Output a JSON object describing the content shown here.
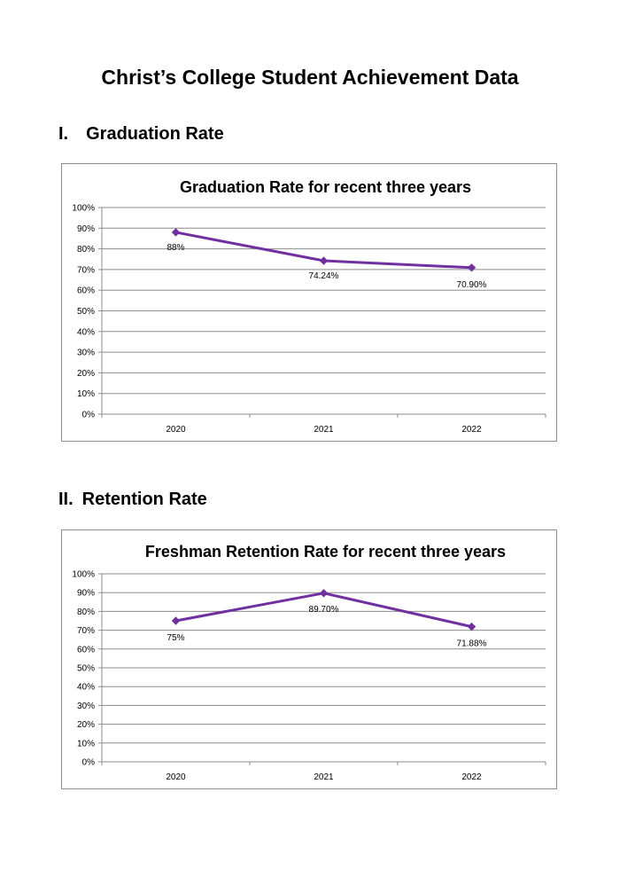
{
  "page": {
    "title": "Christ’s College Student Achievement Data"
  },
  "sections": [
    {
      "heading": "I. Graduation Rate"
    },
    {
      "heading": "II. Retention Rate"
    }
  ],
  "colors": {
    "series_line": "#7030a0",
    "grid": "#8c8c8c",
    "frame": "#8c8c8c"
  },
  "chart_data": [
    {
      "type": "line",
      "title": "Graduation Rate for recent three years",
      "xlabel": "",
      "ylabel": "",
      "categories": [
        "2020",
        "2021",
        "2022"
      ],
      "series": [
        {
          "values": [
            88,
            74.24,
            70.9
          ],
          "data_labels": [
            "88%",
            "74.24%",
            "70.90%"
          ]
        }
      ],
      "ylim": [
        0,
        100
      ],
      "yticks": [
        "0%",
        "10%",
        "20%",
        "30%",
        "40%",
        "50%",
        "60%",
        "70%",
        "80%",
        "90%",
        "100%"
      ],
      "marker": "diamond",
      "grid": true,
      "legend": "none"
    },
    {
      "type": "line",
      "title": "Freshman Retention Rate for recent three years",
      "xlabel": "",
      "ylabel": "",
      "categories": [
        "2020",
        "2021",
        "2022"
      ],
      "series": [
        {
          "values": [
            75,
            89.7,
            71.88
          ],
          "data_labels": [
            "75%",
            "89.70%",
            "71.88%"
          ]
        }
      ],
      "ylim": [
        0,
        100
      ],
      "yticks": [
        "0%",
        "10%",
        "20%",
        "30%",
        "40%",
        "50%",
        "60%",
        "70%",
        "80%",
        "90%",
        "100%"
      ],
      "marker": "diamond",
      "grid": true,
      "legend": "none"
    }
  ]
}
